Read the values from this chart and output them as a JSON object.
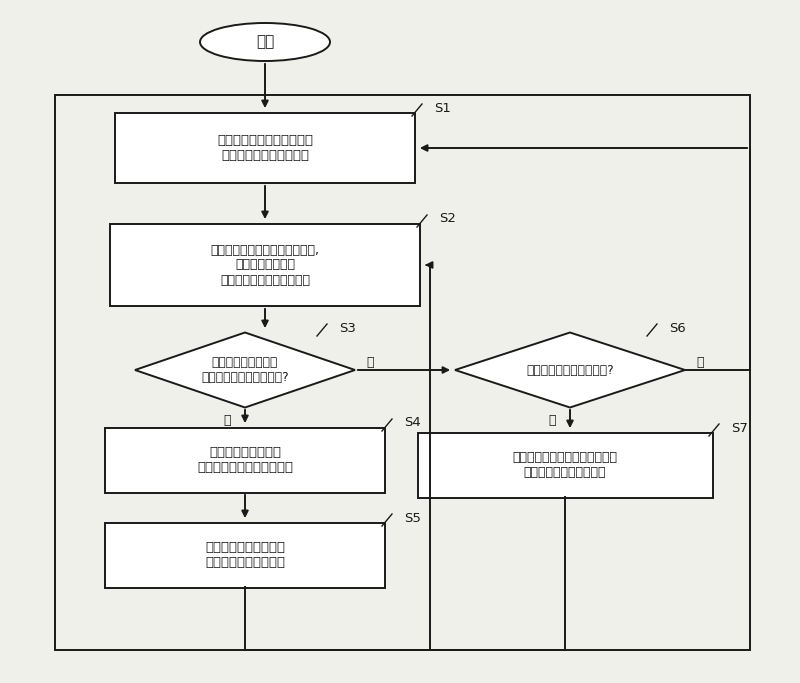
{
  "bg_color": "#f0f0eb",
  "box_color": "#ffffff",
  "box_edge": "#1a1a1a",
  "arrow_color": "#1a1a1a",
  "text_color": "#1a1a1a",
  "start_text": "开始",
  "s1_text": "电子计量装置将用户所选择\n的价目表设定到存储器中",
  "s2_text": "根据上述价目表的电力控制程序,\n通过需求控制装置\n对各种负载的动作进行控制",
  "s3_text": "根据价目表判断是否\n到达停止负载工作的时间?",
  "s4_text": "电子计量装置向需求\n控制装置传送电力断开指令",
  "s5_text": "需求控制装置断开供向\n特定负载或家电的电力",
  "s6_text": "是否向主服务器传送数据?",
  "s7_text": "将储存在存储器中的各种计量和\n监视数据上传给主服务器",
  "yes_text": "是",
  "no_text": "否",
  "lw": 1.4
}
